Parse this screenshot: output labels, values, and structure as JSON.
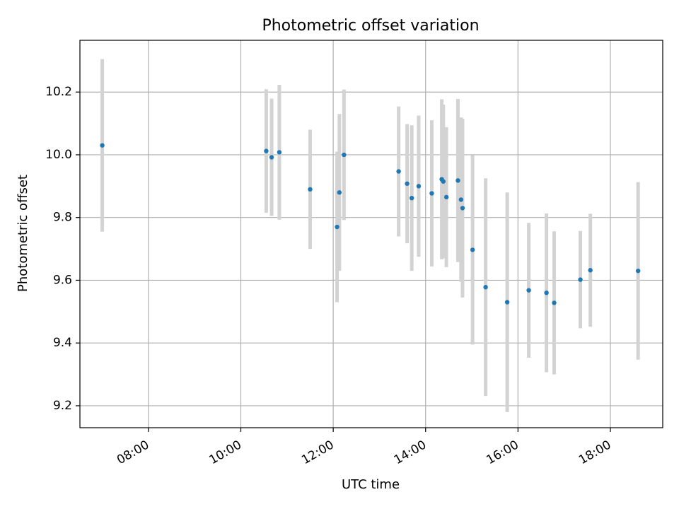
{
  "chart_data": {
    "type": "scatter",
    "title": "Photometric offset variation",
    "xlabel": "UTC time",
    "ylabel": "Photometric offset",
    "xlim": [
      "06:31",
      "19:08"
    ],
    "ylim": [
      9.13,
      10.365
    ],
    "grid": true,
    "x_ticks": [
      "08:00",
      "10:00",
      "12:00",
      "14:00",
      "16:00",
      "18:00"
    ],
    "y_ticks": [
      9.2,
      9.4,
      9.6,
      9.8,
      10.0,
      10.2
    ],
    "x_tick_labels": [
      "08:00",
      "10:00",
      "12:00",
      "14:00",
      "16:00",
      "18:00"
    ],
    "y_tick_labels": [
      "9.2",
      "9.4",
      "9.6",
      "9.8",
      "10.0",
      "10.2"
    ],
    "marker_color": "#1f77b4",
    "errorbar_color": "#d3d3d3",
    "points": [
      {
        "x": "07:00",
        "y": 10.03,
        "yerr": 0.275
      },
      {
        "x": "10:33",
        "y": 10.012,
        "yerr": 0.197
      },
      {
        "x": "10:40",
        "y": 9.992,
        "yerr": 0.187
      },
      {
        "x": "10:50",
        "y": 10.008,
        "yerr": 0.215
      },
      {
        "x": "11:30",
        "y": 9.89,
        "yerr": 0.19
      },
      {
        "x": "12:05",
        "y": 9.77,
        "yerr": 0.24
      },
      {
        "x": "12:08",
        "y": 9.88,
        "yerr": 0.25
      },
      {
        "x": "12:14",
        "y": 10.0,
        "yerr": 0.208
      },
      {
        "x": "13:25",
        "y": 9.947,
        "yerr": 0.207
      },
      {
        "x": "13:36",
        "y": 9.908,
        "yerr": 0.19
      },
      {
        "x": "13:42",
        "y": 9.862,
        "yerr": 0.232
      },
      {
        "x": "13:51",
        "y": 9.9,
        "yerr": 0.225
      },
      {
        "x": "14:08",
        "y": 9.877,
        "yerr": 0.233
      },
      {
        "x": "14:21",
        "y": 9.922,
        "yerr": 0.255
      },
      {
        "x": "14:23",
        "y": 9.915,
        "yerr": 0.245
      },
      {
        "x": "14:27",
        "y": 9.865,
        "yerr": 0.223
      },
      {
        "x": "14:42",
        "y": 9.918,
        "yerr": 0.26
      },
      {
        "x": "14:46",
        "y": 9.857,
        "yerr": 0.262
      },
      {
        "x": "14:48",
        "y": 9.83,
        "yerr": 0.285
      },
      {
        "x": "15:01",
        "y": 9.697,
        "yerr": 0.302
      },
      {
        "x": "15:18",
        "y": 9.578,
        "yerr": 0.347
      },
      {
        "x": "15:46",
        "y": 9.53,
        "yerr": 0.35
      },
      {
        "x": "16:14",
        "y": 9.568,
        "yerr": 0.215
      },
      {
        "x": "16:37",
        "y": 9.56,
        "yerr": 0.253
      },
      {
        "x": "16:47",
        "y": 9.528,
        "yerr": 0.228
      },
      {
        "x": "17:21",
        "y": 9.602,
        "yerr": 0.155
      },
      {
        "x": "17:34",
        "y": 9.632,
        "yerr": 0.18
      },
      {
        "x": "18:36",
        "y": 9.63,
        "yerr": 0.283
      }
    ]
  }
}
